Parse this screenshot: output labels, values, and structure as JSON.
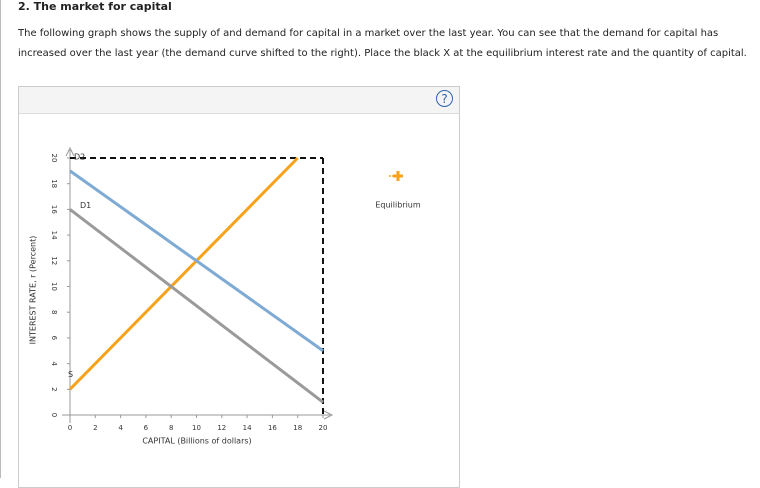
{
  "header": {
    "title": "2. The market for capital"
  },
  "instructions": "The following graph shows the supply of and demand for capital in a market over the last year. You can see that the demand for capital has increased over the last year (the demand curve shifted to the right). Place the black X at the equilibrium interest rate and the quantity of capital.",
  "help_icon": "?",
  "tool_label": "Equilibrium",
  "chart_data": {
    "type": "line",
    "x_label": "CAPITAL (Billions of dollars)",
    "y_label": "INTEREST RATE, r (Percent)",
    "xlim": [
      0,
      20
    ],
    "ylim": [
      0,
      20
    ],
    "xticks": [
      0,
      2,
      4,
      6,
      8,
      10,
      12,
      14,
      16,
      18,
      20
    ],
    "yticks": [
      0,
      2,
      4,
      6,
      8,
      10,
      12,
      14,
      16,
      18,
      20
    ],
    "series": [
      {
        "name": "S",
        "color": "#f7a21b",
        "x": [
          0,
          18
        ],
        "values": [
          2,
          20
        ]
      },
      {
        "name": "D1",
        "color": "#9a9a9a",
        "x": [
          0,
          20
        ],
        "values": [
          16,
          1
        ]
      },
      {
        "name": "D2",
        "color": "#7eaad4",
        "x": [
          0,
          20
        ],
        "values": [
          19,
          5
        ]
      }
    ]
  }
}
